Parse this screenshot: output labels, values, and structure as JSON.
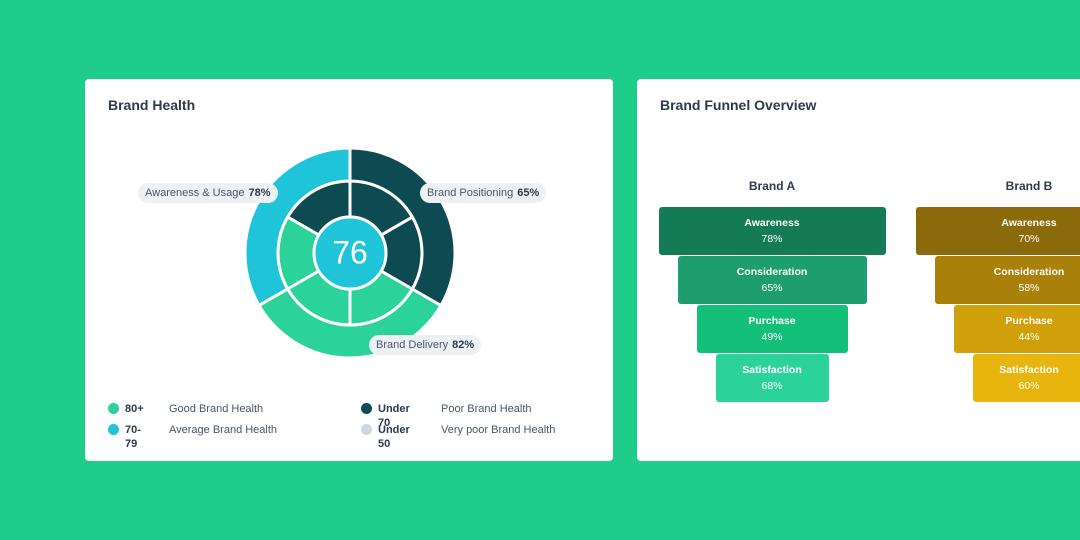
{
  "brand_health": {
    "title": "Brand Health",
    "score": "76",
    "labels": [
      {
        "name": "Awareness & Usage",
        "value": "78%"
      },
      {
        "name": "Brand Positioning",
        "value": "65%"
      },
      {
        "name": "Brand Delivery",
        "value": "82%"
      }
    ],
    "legend": [
      {
        "range": "80+",
        "text": "Good Brand Health"
      },
      {
        "range": "70-79",
        "text": "Average Brand Health"
      },
      {
        "range": "Under 70",
        "text": "Poor Brand Health"
      },
      {
        "range": "Under 50",
        "text": "Very poor Brand Health"
      }
    ]
  },
  "funnel": {
    "title": "Brand Funnel Overview",
    "brands": [
      {
        "name": "Brand A",
        "stages": [
          {
            "name": "Awareness",
            "value": "78%"
          },
          {
            "name": "Consideration",
            "value": "65%"
          },
          {
            "name": "Purchase",
            "value": "49%"
          },
          {
            "name": "Satisfaction",
            "value": "68%"
          }
        ]
      },
      {
        "name": "Brand B",
        "stages": [
          {
            "name": "Awareness",
            "value": "70%"
          },
          {
            "name": "Consideration",
            "value": "58%"
          },
          {
            "name": "Purchase",
            "value": "44%"
          },
          {
            "name": "Satisfaction",
            "value": "60%"
          }
        ]
      }
    ]
  }
}
